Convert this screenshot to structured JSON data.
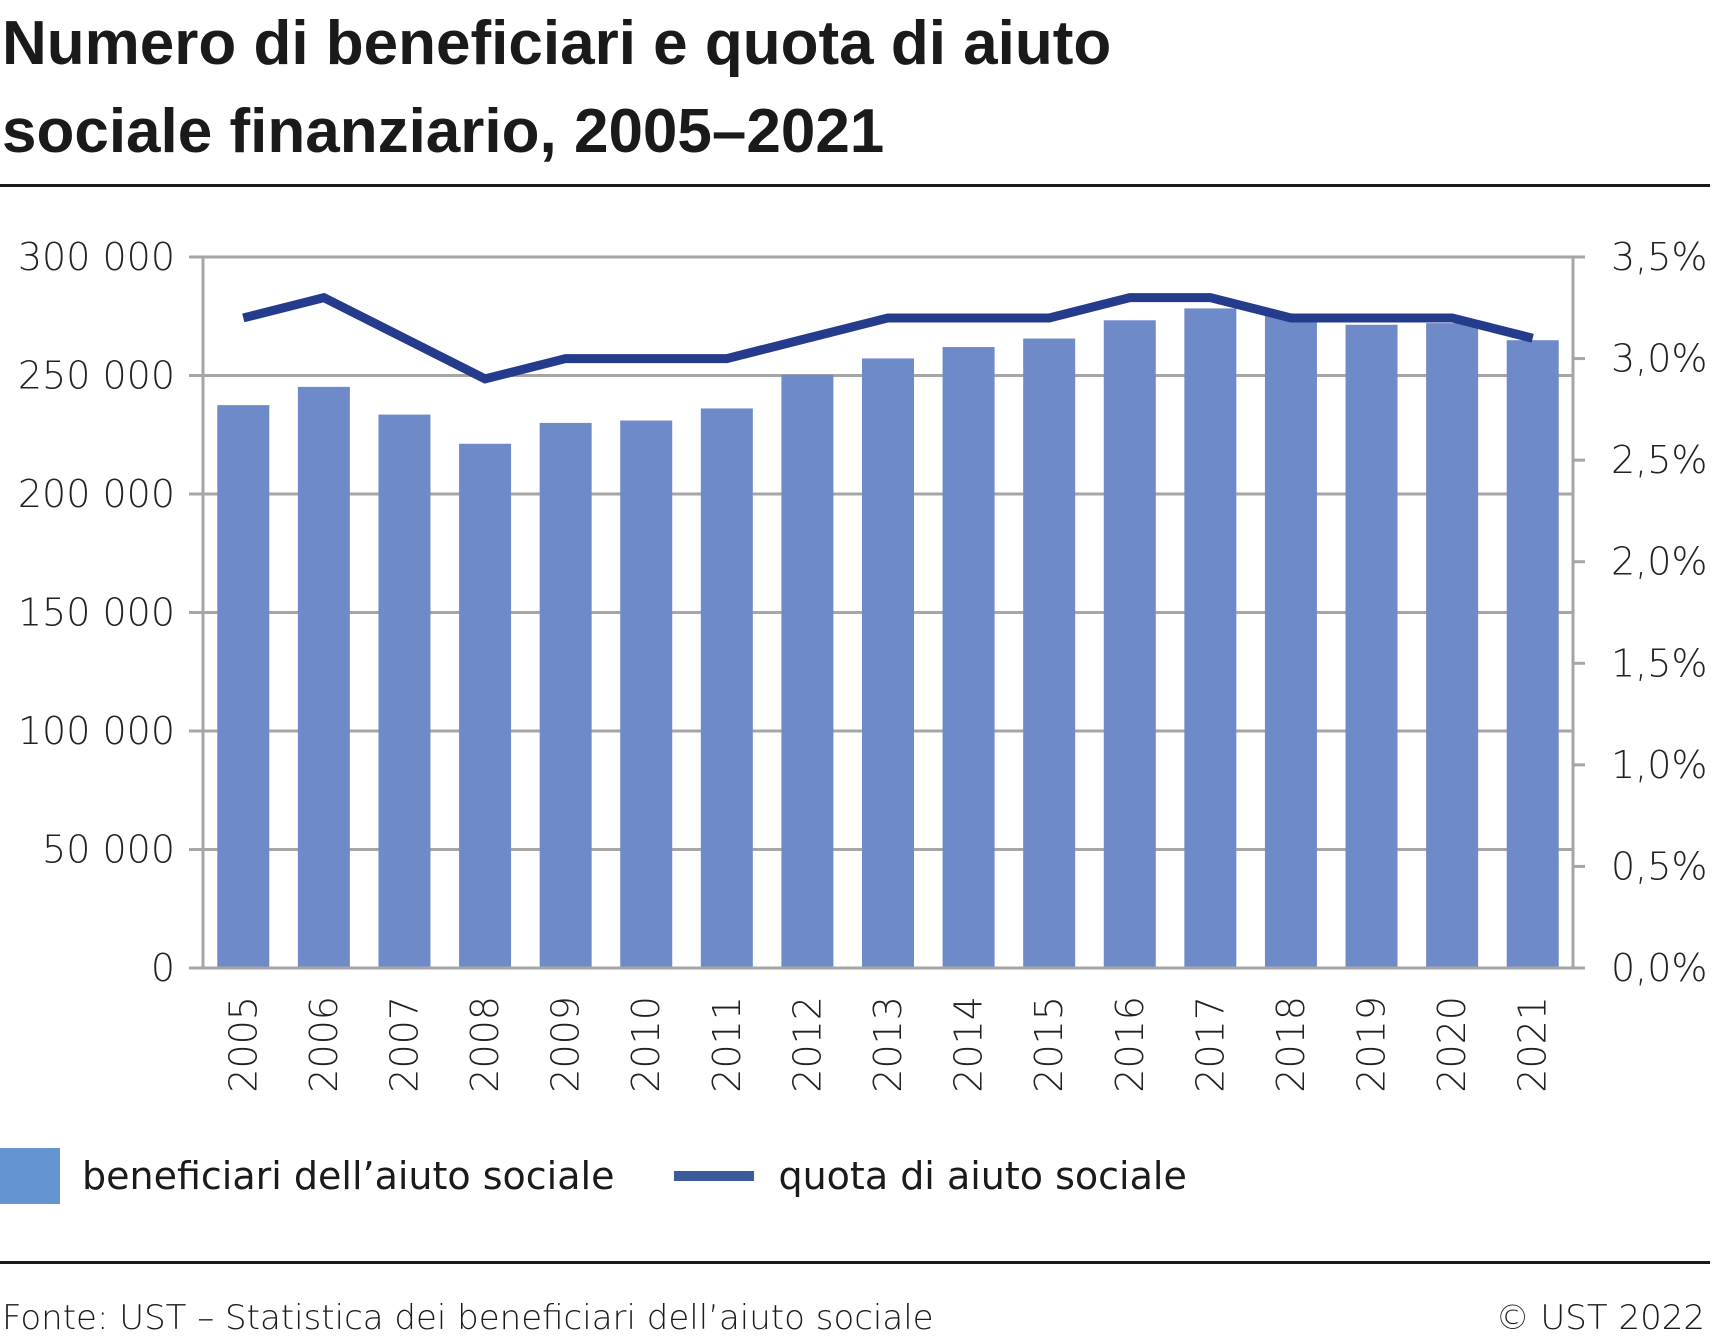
{
  "title": "Numero di beneficiari e quota di aiuto sociale finanziario, 2005–2021",
  "chart_data": {
    "type": "bar+line",
    "title": "Numero di beneficiari e quota di aiuto sociale finanziario, 2005–2021",
    "categories": [
      "2005",
      "2006",
      "2007",
      "2008",
      "2009",
      "2010",
      "2011",
      "2012",
      "2013",
      "2014",
      "2015",
      "2016",
      "2017",
      "2018",
      "2019",
      "2020",
      "2021"
    ],
    "series": [
      {
        "name": "beneficiari dell’aiuto sociale",
        "type": "bar",
        "axis": "left",
        "color": "#6f8ac8",
        "values": [
          237500,
          245200,
          233500,
          221200,
          230000,
          231000,
          236100,
          250300,
          257200,
          262000,
          265600,
          273300,
          278300,
          275100,
          271400,
          272100,
          264900
        ]
      },
      {
        "name": "quota di aiuto sociale",
        "type": "line",
        "axis": "right",
        "color": "#253c8c",
        "values": [
          3.2,
          3.3,
          3.1,
          2.9,
          3.0,
          3.0,
          3.0,
          3.1,
          3.2,
          3.2,
          3.2,
          3.3,
          3.3,
          3.2,
          3.2,
          3.2,
          3.1
        ]
      }
    ],
    "y_left": {
      "lim": [
        0,
        300000
      ],
      "ticks": [
        "0",
        "50 000",
        "100 000",
        "150 000",
        "200 000",
        "250 000",
        "300 000"
      ]
    },
    "y_right": {
      "lim": [
        0,
        3.5
      ],
      "ticks": [
        "0,0%",
        "0,5%",
        "1,0%",
        "1,5%",
        "2,0%",
        "2,5%",
        "3,0%",
        "3,5%"
      ]
    },
    "grid": true,
    "legend": "bottom"
  },
  "legend": {
    "bar_label": "beneficiari dell’aiuto sociale",
    "line_label": "quota di aiuto sociale"
  },
  "footer": {
    "source": "Fonte: UST – Statistica dei beneficiari dell’aiuto sociale",
    "copyright": "© UST 2022"
  }
}
